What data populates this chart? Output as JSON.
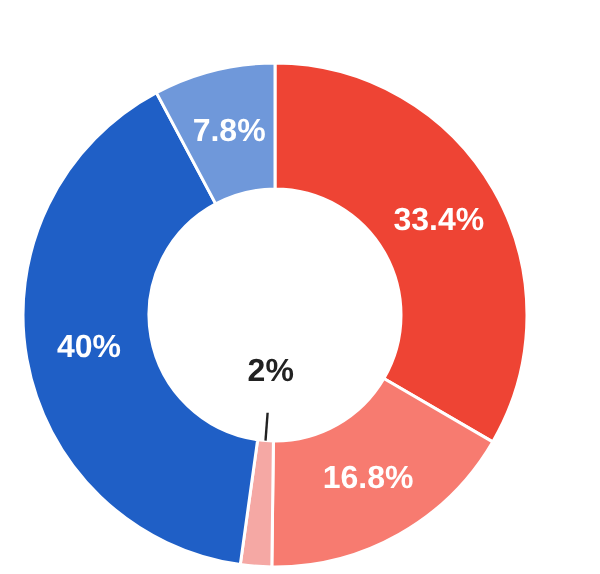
{
  "chart_data": {
    "type": "donut",
    "categories": [
      null,
      null,
      null,
      null,
      null
    ],
    "values": [
      33.4,
      16.8,
      2,
      40,
      7.8
    ],
    "colors": [
      "#ee4434",
      "#f77b70",
      "#f5a8a4",
      "#1f5fc6",
      "#6f98da"
    ],
    "value_labels": [
      "33.4%",
      "16.8%",
      "2%",
      "40%",
      "7.8%"
    ]
  }
}
